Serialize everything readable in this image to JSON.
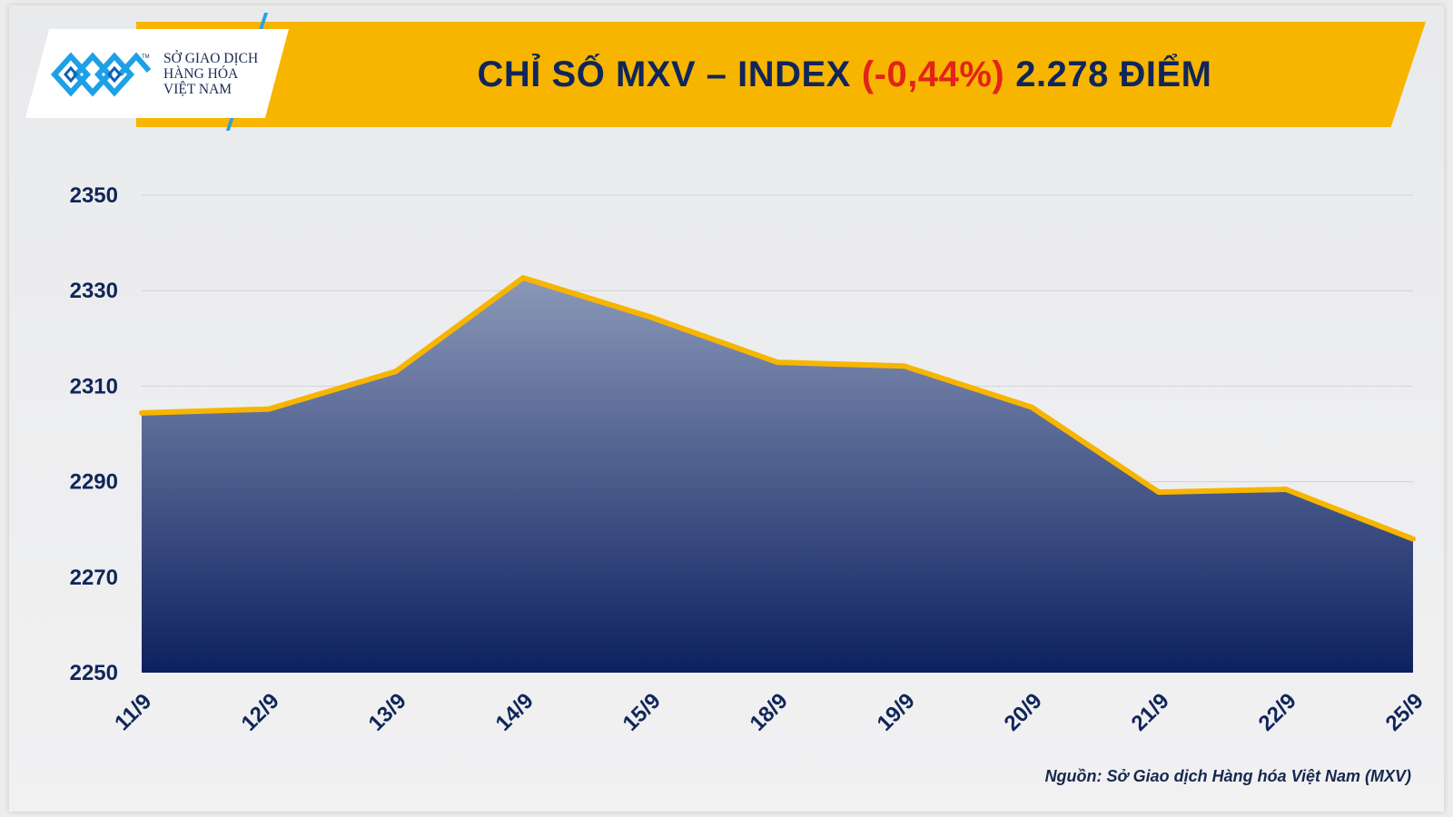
{
  "header": {
    "title_main": "CHỈ SỐ MXV – INDEX",
    "title_change": "(-0,44%)",
    "title_value": "2.278 ĐIỂM"
  },
  "logo": {
    "icon": "mxv-logo-icon",
    "line1": "SỞ GIAO DỊCH",
    "line2": "HÀNG HÓA",
    "line3": "VIỆT NAM",
    "tm": "TM"
  },
  "source": "Nguồn: Sở Giao dịch Hàng hóa Việt Nam (MXV)",
  "colors": {
    "banner": "#f7b500",
    "title": "#10265a",
    "change": "#e2231a",
    "line": "#f7b500",
    "area_top": "#8a98b8",
    "area_bottom": "#0d2160"
  },
  "chart_data": {
    "type": "area",
    "title": "CHỈ SỐ MXV – INDEX (-0,44%) 2.278 ĐIỂM",
    "categories": [
      "11/9",
      "12/9",
      "13/9",
      "14/9",
      "15/9",
      "18/9",
      "19/9",
      "20/9",
      "21/9",
      "22/9",
      "25/9"
    ],
    "series": [
      {
        "values": [
          2304.4,
          2305.2,
          2313.1,
          2332.7,
          2324.5,
          2315.0,
          2314.2,
          2305.6,
          2287.8,
          2288.4,
          2278.0
        ]
      }
    ],
    "yticks": [
      2250,
      2270,
      2290,
      2310,
      2330,
      2350
    ],
    "ylim": [
      2250,
      2350
    ],
    "grid": true,
    "legend": "none"
  }
}
